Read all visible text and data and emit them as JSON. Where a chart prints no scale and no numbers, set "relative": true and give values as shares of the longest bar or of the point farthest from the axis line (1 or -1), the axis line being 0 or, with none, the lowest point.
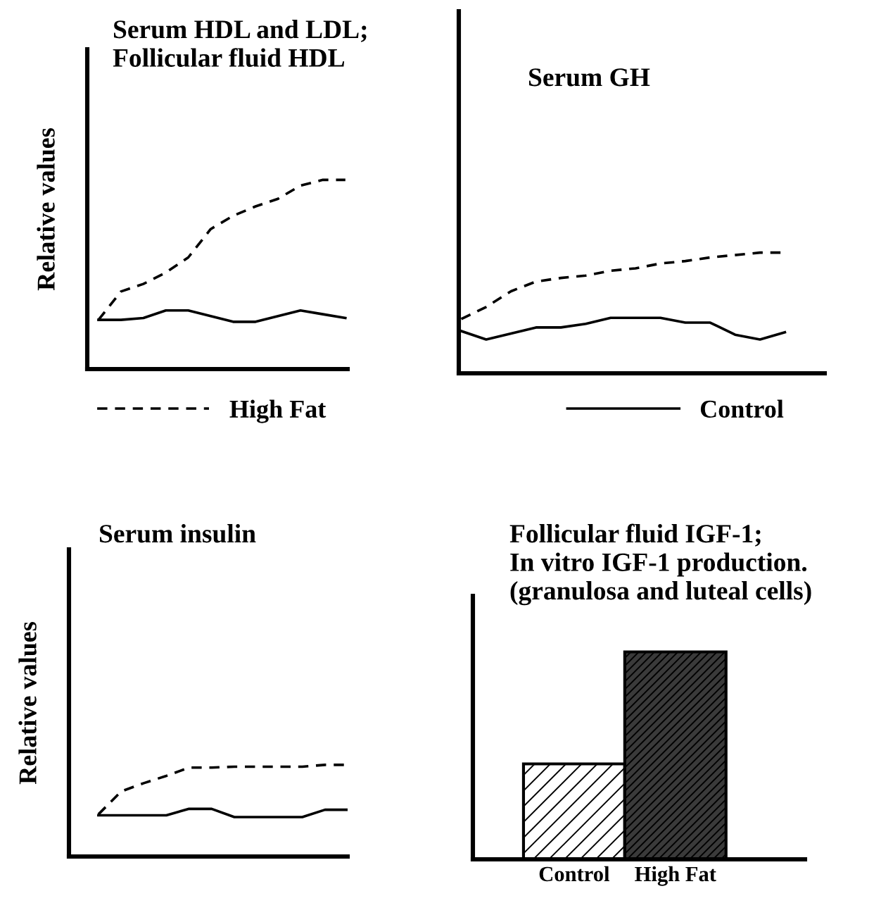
{
  "chart_data": [
    {
      "type": "line",
      "title": "Serum HDL and LDL;\nFollicular fluid HDL",
      "ylabel": "Relative values",
      "relative": true,
      "tick_labels": false,
      "legend": "bottom",
      "categories": [
        null,
        null,
        null,
        null,
        null,
        null,
        null,
        null,
        null,
        null,
        null,
        null
      ],
      "series": [
        {
          "name": "High Fat",
          "color": "#000000",
          "line_style": "dashed",
          "values": [
            0.26,
            0.41,
            0.45,
            0.51,
            0.59,
            0.74,
            0.81,
            0.86,
            0.9,
            0.97,
            1,
            1
          ]
        },
        {
          "name": "Control",
          "color": "#000000",
          "line_style": "solid",
          "values": [
            0.26,
            0.26,
            0.27,
            0.31,
            0.31,
            0.28,
            0.25,
            0.25,
            0.28,
            0.31,
            0.29,
            0.27
          ]
        }
      ]
    },
    {
      "type": "line",
      "title": "Serum GH",
      "relative": true,
      "tick_labels": false,
      "categories": [
        null,
        null,
        null,
        null,
        null,
        null,
        null,
        null,
        null,
        null,
        null,
        null,
        null,
        null
      ],
      "series": [
        {
          "color": "#000000",
          "line_style": "dashed",
          "values": [
            0.45,
            0.55,
            0.68,
            0.76,
            0.79,
            0.81,
            0.85,
            0.87,
            0.91,
            0.93,
            0.96,
            0.98,
            1,
            1
          ]
        },
        {
          "color": "#000000",
          "line_style": "solid",
          "values": [
            0.35,
            0.28,
            0.33,
            0.38,
            0.38,
            0.41,
            0.46,
            0.46,
            0.46,
            0.42,
            0.42,
            0.32,
            0.28,
            0.34
          ]
        }
      ]
    },
    {
      "type": "line",
      "title": "Serum insulin",
      "ylabel": "Relative values",
      "relative": true,
      "tick_labels": false,
      "categories": [
        null,
        null,
        null,
        null,
        null,
        null,
        null,
        null,
        null,
        null,
        null,
        null
      ],
      "series": [
        {
          "color": "#000000",
          "line_style": "dashed",
          "values": [
            0.46,
            0.71,
            0.8,
            0.88,
            0.97,
            0.97,
            0.98,
            0.98,
            0.98,
            0.98,
            1,
            1
          ]
        },
        {
          "color": "#000000",
          "line_style": "solid",
          "values": [
            0.45,
            0.45,
            0.45,
            0.45,
            0.52,
            0.52,
            0.43,
            0.43,
            0.43,
            0.43,
            0.51,
            0.51
          ]
        }
      ]
    },
    {
      "type": "bar",
      "title": "Follicular fluid IGF-1;\nIn vitro IGF-1 production.\n(granulosa and luteal cells)",
      "relative": true,
      "tick_labels": "x",
      "categories": [
        "Control",
        "High Fat"
      ],
      "values": [
        0.46,
        1
      ],
      "colors": [
        "#ffffff",
        "#3a3a3a"
      ]
    }
  ]
}
